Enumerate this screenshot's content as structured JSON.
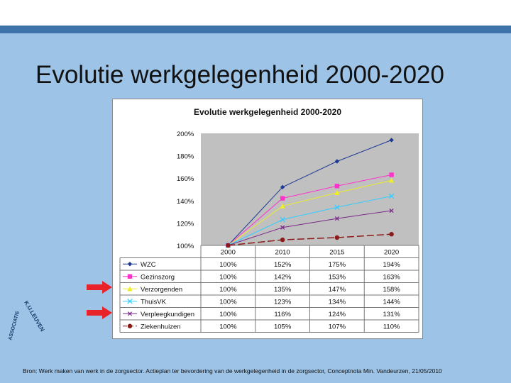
{
  "slide": {
    "title": "Evolutie werkgelegenheid 2000-2020",
    "source": "Bron: Werk maken van werk in de zorgsector. Actieplan ter bevordering van de werkgelegenheid in de zorgsector, Conceptnota Min. Vandeurzen, 21/05/2010",
    "logo_text": "K.U.LEUVEN ASSOCIATIE",
    "colors": {
      "bar": "#3e73aa",
      "background": "#9dc3e6",
      "arrow": "#e8242a"
    }
  },
  "chart_data": {
    "type": "line",
    "title": "Evolutie werkgelegenheid 2000-2020",
    "categories": [
      "2000",
      "2010",
      "2015",
      "2020"
    ],
    "ylim": [
      100,
      200
    ],
    "yticks": [
      "200%",
      "180%",
      "160%",
      "140%",
      "120%",
      "100%"
    ],
    "grid": false,
    "legend": "table-below",
    "series": [
      {
        "name": "WZC",
        "values": [
          100,
          152,
          175,
          194
        ],
        "labels": [
          "100%",
          "152%",
          "175%",
          "194%"
        ],
        "color": "#1f3a93",
        "marker": "diamond",
        "dash": ""
      },
      {
        "name": "Gezinszorg",
        "values": [
          100,
          142,
          153,
          163
        ],
        "labels": [
          "100%",
          "142%",
          "153%",
          "163%"
        ],
        "color": "#ff33cc",
        "marker": "square",
        "dash": ""
      },
      {
        "name": "Verzorgenden",
        "values": [
          100,
          135,
          147,
          158
        ],
        "labels": [
          "100%",
          "135%",
          "147%",
          "158%"
        ],
        "color": "#eded2a",
        "marker": "triangle",
        "dash": ""
      },
      {
        "name": "ThuisVK",
        "values": [
          100,
          123,
          134,
          144
        ],
        "labels": [
          "100%",
          "123%",
          "134%",
          "144%"
        ],
        "color": "#33ccff",
        "marker": "x",
        "dash": ""
      },
      {
        "name": "Verpleegkundigen",
        "values": [
          100,
          116,
          124,
          131
        ],
        "labels": [
          "100%",
          "116%",
          "124%",
          "131%"
        ],
        "color": "#7a2a8a",
        "marker": "cross",
        "dash": ""
      },
      {
        "name": "Ziekenhuizen",
        "values": [
          100,
          105,
          107,
          110
        ],
        "labels": [
          "100%",
          "105%",
          "107%",
          "110%"
        ],
        "color": "#8b1a1a",
        "marker": "circle",
        "dash": "10,4"
      }
    ]
  }
}
